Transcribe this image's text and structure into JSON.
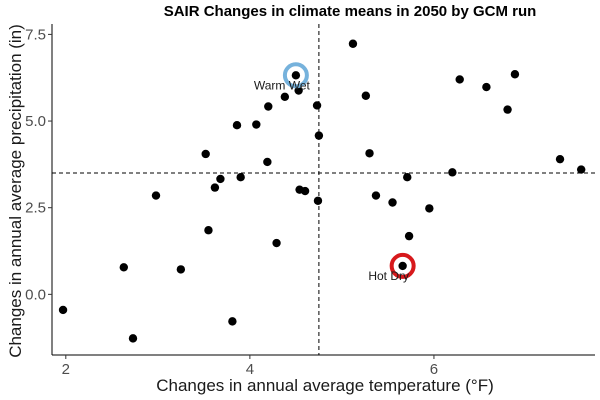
{
  "chart_data": {
    "type": "scatter",
    "title": "SAIR Changes in climate means in 2050 by GCM run",
    "xlabel": "Changes in annual average temperature (°F)",
    "ylabel": "Changes in annual average precipitation (in)",
    "xlim": [
      1.85,
      7.75
    ],
    "ylim": [
      -1.75,
      7.8
    ],
    "xticks": [
      2,
      4,
      6
    ],
    "xtick_labels": [
      "2",
      "4",
      "6"
    ],
    "yticks": [
      0,
      2.5,
      5,
      7.5
    ],
    "ytick_labels": [
      "0.0",
      "2.5",
      "5.0",
      "7.5"
    ],
    "grid": false,
    "reference_lines": {
      "x": 4.75,
      "y": 3.5
    },
    "points": [
      {
        "x": 1.97,
        "y": -0.45
      },
      {
        "x": 2.63,
        "y": 0.78
      },
      {
        "x": 2.73,
        "y": -1.27
      },
      {
        "x": 2.98,
        "y": 2.85
      },
      {
        "x": 3.25,
        "y": 0.72
      },
      {
        "x": 3.52,
        "y": 4.05
      },
      {
        "x": 3.55,
        "y": 1.85
      },
      {
        "x": 3.62,
        "y": 3.08
      },
      {
        "x": 3.68,
        "y": 3.33
      },
      {
        "x": 3.81,
        "y": -0.78
      },
      {
        "x": 3.86,
        "y": 4.88
      },
      {
        "x": 3.9,
        "y": 3.38
      },
      {
        "x": 4.07,
        "y": 4.9
      },
      {
        "x": 4.19,
        "y": 3.82
      },
      {
        "x": 4.2,
        "y": 5.42
      },
      {
        "x": 4.29,
        "y": 1.48
      },
      {
        "x": 4.38,
        "y": 5.7
      },
      {
        "x": 4.5,
        "y": 6.32
      },
      {
        "x": 4.53,
        "y": 5.88
      },
      {
        "x": 4.54,
        "y": 3.02
      },
      {
        "x": 4.6,
        "y": 2.98
      },
      {
        "x": 4.73,
        "y": 5.45
      },
      {
        "x": 4.74,
        "y": 2.7
      },
      {
        "x": 4.75,
        "y": 4.58
      },
      {
        "x": 5.12,
        "y": 7.23
      },
      {
        "x": 5.26,
        "y": 5.73
      },
      {
        "x": 5.3,
        "y": 4.07
      },
      {
        "x": 5.37,
        "y": 2.85
      },
      {
        "x": 5.55,
        "y": 2.65
      },
      {
        "x": 5.66,
        "y": 0.82
      },
      {
        "x": 5.71,
        "y": 3.38
      },
      {
        "x": 5.73,
        "y": 1.68
      },
      {
        "x": 5.95,
        "y": 2.48
      },
      {
        "x": 6.2,
        "y": 3.52
      },
      {
        "x": 6.28,
        "y": 6.2
      },
      {
        "x": 6.57,
        "y": 5.98
      },
      {
        "x": 6.8,
        "y": 5.33
      },
      {
        "x": 6.88,
        "y": 6.35
      },
      {
        "x": 7.37,
        "y": 3.9
      },
      {
        "x": 7.6,
        "y": 3.6
      }
    ],
    "highlights": [
      {
        "label": "Warm Wet",
        "x": 4.5,
        "y": 6.32,
        "color": "#76b2dc"
      },
      {
        "label": "Hot Dry",
        "x": 5.66,
        "y": 0.82,
        "color": "#d7191c"
      }
    ],
    "point_color": "#000000"
  }
}
